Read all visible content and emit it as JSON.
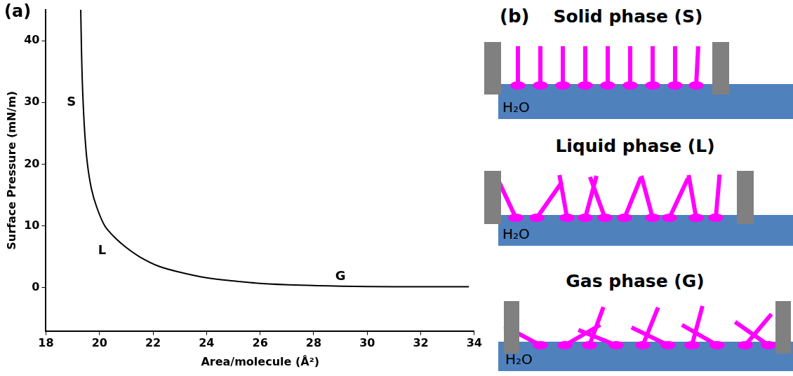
{
  "chart_data": {
    "type": "line",
    "label": "(a)",
    "x_label": "Area/molecule (Å²)",
    "y_label": "Surface Pressure (mN/m)",
    "x": [
      19.3,
      19.33,
      19.37,
      19.45,
      19.55,
      19.7,
      19.9,
      20.2,
      20.6,
      21.0,
      21.5,
      22.2,
      23.0,
      24.0,
      25.0,
      26.0,
      27.5,
      29.0,
      31.0,
      33.8
    ],
    "values": [
      45,
      38,
      32,
      25,
      20,
      16,
      13,
      10,
      8,
      6.5,
      5,
      3.5,
      2.5,
      1.6,
      1.1,
      0.7,
      0.4,
      0.25,
      0.15,
      0.15
    ],
    "color": "#000000",
    "xlim": [
      18,
      34
    ],
    "xticks": [
      18,
      20,
      22,
      24,
      26,
      28,
      30,
      32,
      34
    ],
    "ylim": [
      -7,
      45
    ],
    "yticks": [
      0,
      10,
      20,
      30,
      40
    ],
    "grid": false,
    "annotations": [
      {
        "text": "S",
        "x": 18.95,
        "y": 30
      },
      {
        "text": "L",
        "x": 20.1,
        "y": 6
      },
      {
        "text": "G",
        "x": 29.0,
        "y": 1.8
      }
    ]
  },
  "diagram": {
    "label": "(b)",
    "panels": [
      {
        "title": "Solid phase (S)",
        "liquid": "H₂O"
      },
      {
        "title": "Liquid phase (L)",
        "liquid": "H₂O"
      },
      {
        "title": "Gas phase (G)",
        "liquid": "H₂O"
      }
    ]
  }
}
